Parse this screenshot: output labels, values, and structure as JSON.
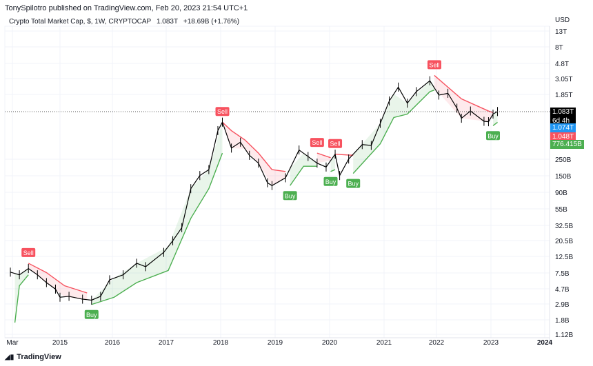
{
  "header": {
    "published": "TonySpilotro published on TradingView.com, Feb 20, 2023 21:54 UTC+1"
  },
  "legend": {
    "symbol": "Crypto Total Market Cap, $, 1W, CRYPTOCAP",
    "last": "1.083T",
    "change": "+18.69B (+1.76%)"
  },
  "price_tags": {
    "last": "1.083T",
    "countdown": "6d 4h",
    "blue": "1.074T",
    "red": "1.048T",
    "green": "776.415B"
  },
  "colors": {
    "up": "#4caf50",
    "down": "#f7525f",
    "blue": "#2196f3",
    "price": "#000000"
  },
  "footer": {
    "brand": "TradingView"
  },
  "chart_data": {
    "type": "line",
    "scale": "log",
    "currency": "USD",
    "grid": true,
    "yticks": [
      "13T",
      "8T",
      "4.8T",
      "3.05T",
      "1.85T",
      "250B",
      "150B",
      "90B",
      "55B",
      "32.5B",
      "20.5B",
      "12.5B",
      "7.5B",
      "4.7B",
      "2.9B",
      "1.8B",
      "1.12B"
    ],
    "xticks": [
      "Mar",
      "2015",
      "2016",
      "2017",
      "2018",
      "2019",
      "2020",
      "2021",
      "2022",
      "2023",
      "2024"
    ],
    "price_billions": [
      [
        "2014-02",
        7.6
      ],
      [
        "2014-04",
        7
      ],
      [
        "2014-06",
        8.5
      ],
      [
        "2014-08",
        7
      ],
      [
        "2014-10",
        5.5
      ],
      [
        "2014-12",
        4.5
      ],
      [
        "2015-01",
        3.5
      ],
      [
        "2015-03",
        3.6
      ],
      [
        "2015-06",
        3.3
      ],
      [
        "2015-08",
        3.2
      ],
      [
        "2015-10",
        3.6
      ],
      [
        "2015-12",
        6
      ],
      [
        "2016-03",
        7
      ],
      [
        "2016-06",
        10
      ],
      [
        "2016-08",
        9
      ],
      [
        "2016-12",
        14
      ],
      [
        "2017-02",
        20
      ],
      [
        "2017-04",
        30
      ],
      [
        "2017-06",
        100
      ],
      [
        "2017-08",
        150
      ],
      [
        "2017-10",
        180
      ],
      [
        "2017-12",
        600
      ],
      [
        "2018-01",
        780
      ],
      [
        "2018-03",
        350
      ],
      [
        "2018-05",
        420
      ],
      [
        "2018-07",
        280
      ],
      [
        "2018-09",
        220
      ],
      [
        "2018-11",
        120
      ],
      [
        "2018-12",
        110
      ],
      [
        "2019-03",
        140
      ],
      [
        "2019-06",
        330
      ],
      [
        "2019-08",
        270
      ],
      [
        "2019-10",
        220
      ],
      [
        "2019-12",
        195
      ],
      [
        "2020-02",
        290
      ],
      [
        "2020-03",
        150
      ],
      [
        "2020-05",
        250
      ],
      [
        "2020-08",
        390
      ],
      [
        "2020-10",
        380
      ],
      [
        "2020-12",
        750
      ],
      [
        "2021-02",
        1500
      ],
      [
        "2021-04",
        2300
      ],
      [
        "2021-06",
        1400
      ],
      [
        "2021-08",
        2000
      ],
      [
        "2021-11",
        2800
      ],
      [
        "2022-01",
        1800
      ],
      [
        "2022-03",
        1900
      ],
      [
        "2022-05",
        1200
      ],
      [
        "2022-06",
        880
      ],
      [
        "2022-08",
        1100
      ],
      [
        "2022-11",
        800
      ],
      [
        "2022-12",
        790
      ],
      [
        "2023-01",
        1000
      ],
      [
        "2023-02",
        1083
      ]
    ],
    "supertrend": [
      {
        "dir": "up",
        "points": [
          [
            "2014-03",
            1.6
          ],
          [
            "2014-04",
            5
          ],
          [
            "2014-06",
            7
          ]
        ]
      },
      {
        "dir": "down",
        "points": [
          [
            "2014-06",
            10
          ],
          [
            "2014-10",
            7.5
          ],
          [
            "2015-02",
            5
          ],
          [
            "2015-07",
            4
          ]
        ]
      },
      {
        "dir": "up",
        "points": [
          [
            "2015-08",
            2.8
          ],
          [
            "2016-01",
            3.5
          ],
          [
            "2016-06",
            5.5
          ],
          [
            "2017-01",
            8
          ],
          [
            "2017-06",
            40
          ],
          [
            "2017-10",
            100
          ],
          [
            "2018-01",
            300
          ]
        ]
      },
      {
        "dir": "down",
        "points": [
          [
            "2018-01",
            780
          ],
          [
            "2018-03",
            600
          ],
          [
            "2018-06",
            450
          ],
          [
            "2018-09",
            300
          ],
          [
            "2018-12",
            180
          ],
          [
            "2019-03",
            170
          ]
        ]
      },
      {
        "dir": "up",
        "points": [
          [
            "2019-04",
            110
          ],
          [
            "2019-07",
            200
          ],
          [
            "2019-10",
            200
          ]
        ]
      },
      {
        "dir": "down",
        "points": [
          [
            "2019-10",
            300
          ],
          [
            "2020-01",
            260
          ]
        ]
      },
      {
        "dir": "up",
        "points": [
          [
            "2020-01",
            170
          ],
          [
            "2020-02",
            180
          ]
        ]
      },
      {
        "dir": "down",
        "points": [
          [
            "2020-02",
            290
          ],
          [
            "2020-06",
            280
          ]
        ]
      },
      {
        "dir": "up",
        "points": [
          [
            "2020-06",
            160
          ],
          [
            "2020-12",
            400
          ],
          [
            "2021-03",
            900
          ],
          [
            "2021-06",
            1000
          ],
          [
            "2021-11",
            2000
          ],
          [
            "2021-12",
            2100
          ]
        ]
      },
      {
        "dir": "down",
        "points": [
          [
            "2021-12",
            3300
          ],
          [
            "2022-06",
            1600
          ],
          [
            "2022-12",
            1100
          ],
          [
            "2023-01",
            1050
          ]
        ]
      },
      {
        "dir": "up",
        "points": [
          [
            "2023-01",
            700
          ],
          [
            "2023-02",
            776.415
          ]
        ]
      }
    ],
    "signals": [
      {
        "label": "Sell",
        "date": "2014-06"
      },
      {
        "label": "Buy",
        "date": "2015-08"
      },
      {
        "label": "Sell",
        "date": "2018-01"
      },
      {
        "label": "Buy",
        "date": "2019-04"
      },
      {
        "label": "Sell",
        "date": "2019-10"
      },
      {
        "label": "Buy",
        "date": "2020-01"
      },
      {
        "label": "Sell",
        "date": "2020-02"
      },
      {
        "label": "Buy",
        "date": "2020-06"
      },
      {
        "label": "Sell",
        "date": "2021-12"
      },
      {
        "label": "Buy",
        "date": "2023-01"
      }
    ]
  }
}
